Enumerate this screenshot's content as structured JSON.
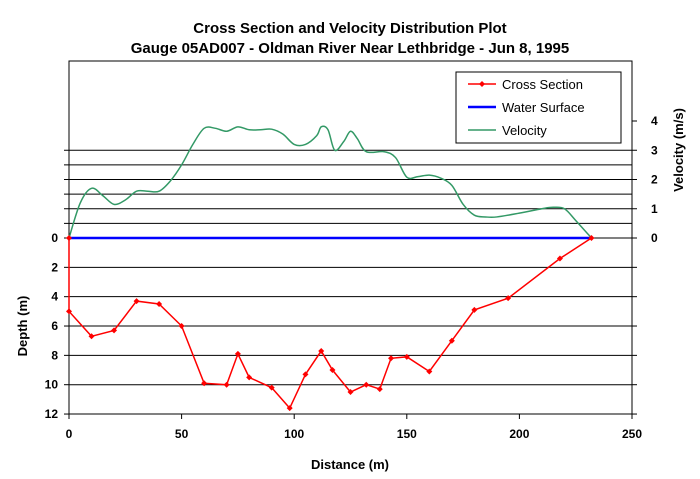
{
  "chart_data": {
    "type": "line",
    "title": "Cross Section and Velocity Distribution Plot",
    "subtitle": "Gauge 05AD007 - Oldman River Near Lethbridge - Jun 8, 1995",
    "xlabel": "Distance (m)",
    "ylabel_left": "Depth (m)",
    "ylabel_right": "Velocity (m/s)",
    "xlim": [
      0,
      250
    ],
    "x_ticks": [
      "0",
      "50",
      "100",
      "150",
      "200",
      "250"
    ],
    "depth_ticks": [
      "0",
      "2",
      "4",
      "6",
      "8",
      "10",
      "12"
    ],
    "velocity_ticks": [
      "0",
      "1",
      "2",
      "3",
      "4"
    ],
    "grid": true,
    "legend_position": "top-right",
    "series": [
      {
        "name": "Cross Section",
        "color": "#ff0000",
        "axis": "depth",
        "x": [
          0,
          0,
          10,
          20,
          30,
          40,
          50,
          60,
          70,
          75,
          80,
          90,
          98,
          105,
          112,
          117,
          125,
          132,
          138,
          143,
          150,
          160,
          170,
          180,
          195,
          218,
          232
        ],
        "y": [
          0,
          5.0,
          6.7,
          6.3,
          4.3,
          4.5,
          6.0,
          9.9,
          10.0,
          7.9,
          9.5,
          10.2,
          11.6,
          9.3,
          7.7,
          9.0,
          10.5,
          10.0,
          10.3,
          8.2,
          8.1,
          9.1,
          7.0,
          4.9,
          4.1,
          1.4,
          0
        ]
      },
      {
        "name": "Water Surface",
        "color": "#0000ff",
        "axis": "depth",
        "x": [
          0,
          232
        ],
        "y": [
          0,
          0
        ]
      },
      {
        "name": "Velocity",
        "color": "#339966",
        "axis": "velocity",
        "x": [
          0,
          5,
          10,
          15,
          20,
          25,
          30,
          35,
          40,
          45,
          50,
          55,
          60,
          65,
          70,
          75,
          80,
          85,
          90,
          95,
          100,
          105,
          110,
          112,
          115,
          118,
          122,
          125,
          128,
          132,
          140,
          145,
          150,
          155,
          160,
          165,
          170,
          175,
          180,
          185,
          190,
          200,
          210,
          215,
          220,
          225,
          232
        ],
        "y": [
          0,
          1.2,
          1.7,
          1.45,
          1.15,
          1.3,
          1.6,
          1.6,
          1.6,
          1.95,
          2.5,
          3.2,
          3.75,
          3.75,
          3.65,
          3.8,
          3.7,
          3.7,
          3.72,
          3.55,
          3.2,
          3.2,
          3.5,
          3.8,
          3.7,
          3.0,
          3.3,
          3.65,
          3.4,
          2.95,
          2.95,
          2.75,
          2.08,
          2.1,
          2.15,
          2.05,
          1.8,
          1.15,
          0.78,
          0.72,
          0.72,
          0.85,
          1.0,
          1.05,
          1.0,
          0.6,
          0
        ]
      }
    ]
  }
}
